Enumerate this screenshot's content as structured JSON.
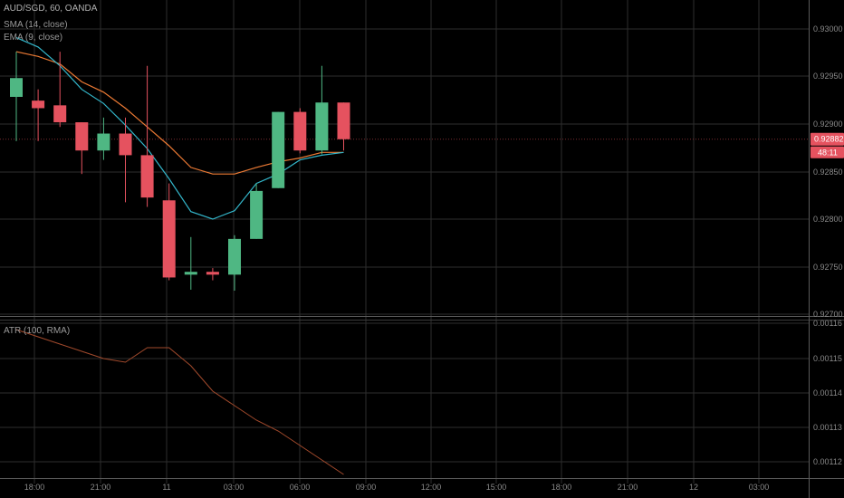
{
  "legend": {
    "symbol": "AUD/SGD, 60, OANDA",
    "sma": "SMA (14, close)",
    "ema": "EMA (9, close)",
    "atr": "ATR (100, RMA)"
  },
  "price_tag": {
    "value": "0.92882",
    "countdown": "48:11",
    "color": "#e5525f"
  },
  "colors": {
    "up": "#4fb783",
    "down": "#e5525f",
    "sma": "#33b5c9",
    "ema": "#ec7a34",
    "atr": "#a24a2c",
    "grid": "#2e2e2e",
    "background": "#000000"
  },
  "chart_data": [
    {
      "type": "candlestick",
      "title": "AUD/SGD, 60, OANDA",
      "x_ticks": [
        "18:00",
        "21:00",
        "11",
        "03:00",
        "06:00",
        "09:00",
        "12:00",
        "15:00",
        "18:00",
        "21:00",
        "12",
        "03:00"
      ],
      "y_ticks": [
        "0.93000",
        "0.92950",
        "0.92900",
        "0.92850",
        "0.92800",
        "0.92750",
        "0.92700"
      ],
      "ylim": [
        0.92695,
        0.9303
      ],
      "candles": [
        {
          "o": 0.92927,
          "h": 0.92975,
          "l": 0.9288,
          "c": 0.92947
        },
        {
          "o": 0.92923,
          "h": 0.92935,
          "l": 0.9288,
          "c": 0.92915
        },
        {
          "o": 0.92918,
          "h": 0.92975,
          "l": 0.92895,
          "c": 0.929
        },
        {
          "o": 0.929,
          "h": 0.929,
          "l": 0.92845,
          "c": 0.9287
        },
        {
          "o": 0.9287,
          "h": 0.92905,
          "l": 0.9286,
          "c": 0.92888
        },
        {
          "o": 0.92888,
          "h": 0.92905,
          "l": 0.92815,
          "c": 0.92865
        },
        {
          "o": 0.92865,
          "h": 0.9296,
          "l": 0.9281,
          "c": 0.9282
        },
        {
          "o": 0.92817,
          "h": 0.92835,
          "l": 0.92732,
          "c": 0.92735
        },
        {
          "o": 0.92738,
          "h": 0.92778,
          "l": 0.92722,
          "c": 0.92741
        },
        {
          "o": 0.92741,
          "h": 0.92745,
          "l": 0.92732,
          "c": 0.92738
        },
        {
          "o": 0.92738,
          "h": 0.9278,
          "l": 0.92721,
          "c": 0.92776
        },
        {
          "o": 0.92776,
          "h": 0.92835,
          "l": 0.92776,
          "c": 0.92827
        },
        {
          "o": 0.9283,
          "h": 0.92911,
          "l": 0.9283,
          "c": 0.92911
        },
        {
          "o": 0.92911,
          "h": 0.92915,
          "l": 0.92867,
          "c": 0.9287
        },
        {
          "o": 0.9287,
          "h": 0.9296,
          "l": 0.92866,
          "c": 0.92921
        },
        {
          "o": 0.92921,
          "h": 0.92921,
          "l": 0.9287,
          "c": 0.92882
        }
      ],
      "series": [
        {
          "name": "SMA (14, close)",
          "values": [
            0.9299,
            0.9298,
            0.9296,
            0.92935,
            0.9292,
            0.92897,
            0.92872,
            0.9284,
            0.92805,
            0.92797,
            0.92806,
            0.92835,
            0.92845,
            0.9286,
            0.92865,
            0.92868
          ]
        },
        {
          "name": "EMA (9, close)",
          "values": [
            0.92975,
            0.9297,
            0.92962,
            0.92943,
            0.92932,
            0.92915,
            0.92895,
            0.92875,
            0.92852,
            0.92845,
            0.92845,
            0.92852,
            0.92858,
            0.92862,
            0.92868,
            0.92868
          ]
        }
      ]
    },
    {
      "type": "line",
      "title": "ATR (100, RMA)",
      "y_ticks": [
        "0.00116",
        "0.00115",
        "0.00114",
        "0.00113",
        "0.00112"
      ],
      "ylim": [
        0.001117,
        0.001161
      ],
      "series": [
        {
          "name": "ATR (100, RMA)",
          "values": [
            0.001158,
            0.001156,
            0.001154,
            0.001152,
            0.00115,
            0.001149,
            0.001153,
            0.001153,
            0.001148,
            0.001141,
            0.001137,
            0.001133,
            0.00113,
            0.001126,
            0.001122,
            0.001118
          ]
        }
      ]
    }
  ]
}
